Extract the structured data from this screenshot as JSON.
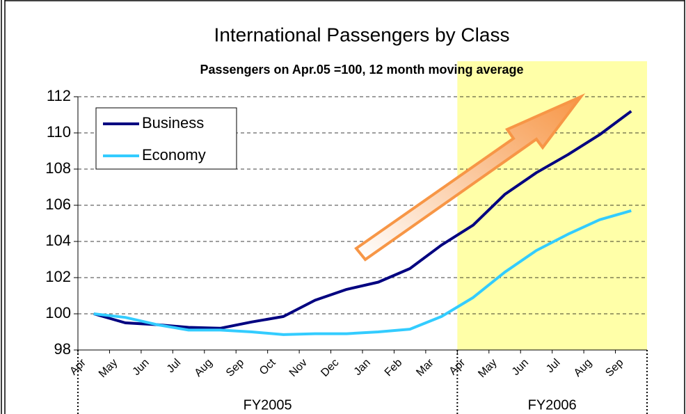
{
  "chart_data": {
    "type": "line",
    "title": "International Passengers by Class",
    "subtitle": "Passengers on Apr.05 =100, 12 month moving average",
    "categories": [
      "Apr",
      "May",
      "Jun",
      "Jul",
      "Aug",
      "Sep",
      "Oct",
      "Nov",
      "Dec",
      "Jan",
      "Feb",
      "Mar",
      "Apr",
      "May",
      "Jun",
      "Jul",
      "Aug",
      "Sep"
    ],
    "groups": [
      "FY2005",
      "FY2006"
    ],
    "series": [
      {
        "name": "Business",
        "color": "#000080",
        "values": [
          100,
          99.5,
          99.4,
          99.25,
          99.2,
          99.55,
          99.85,
          100.75,
          101.35,
          101.75,
          102.5,
          103.8,
          104.9,
          106.6,
          107.8,
          108.8,
          109.9,
          111.2
        ]
      },
      {
        "name": "Economy",
        "color": "#33ccff",
        "values": [
          100,
          99.8,
          99.4,
          99.1,
          99.1,
          99.0,
          98.85,
          98.9,
          98.9,
          99.0,
          99.15,
          99.85,
          100.9,
          102.3,
          103.5,
          104.4,
          105.2,
          105.7
        ]
      }
    ],
    "ylim": [
      98,
      112
    ],
    "yticks": [
      98,
      100,
      102,
      104,
      106,
      108,
      110,
      112
    ],
    "grid": true,
    "legend": "top-left"
  }
}
